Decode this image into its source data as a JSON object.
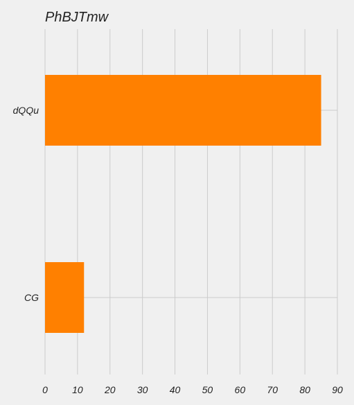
{
  "chart_data": {
    "type": "bar",
    "orientation": "horizontal",
    "title": "PhBJTmw",
    "categories": [
      "dQQu",
      "CG"
    ],
    "values": [
      85,
      12
    ],
    "xlim": [
      0,
      90
    ],
    "xticks": [
      0,
      10,
      20,
      30,
      40,
      50,
      60,
      70,
      80,
      90
    ],
    "xlabel": "",
    "ylabel": "",
    "grid": true,
    "legend": "none",
    "bar_color": "#ff8000",
    "background_color": "#f0f0f0",
    "grid_color": "#cbcbcb"
  }
}
